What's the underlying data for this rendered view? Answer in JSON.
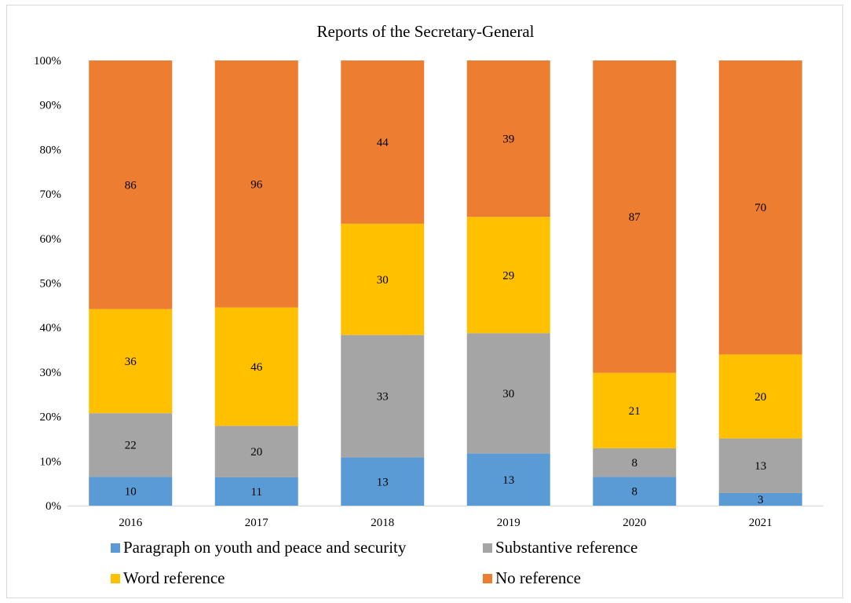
{
  "chart_data": {
    "type": "bar",
    "stacked": "percent",
    "title": "Reports of the Secretary-General",
    "xlabel": "",
    "ylabel": "",
    "categories": [
      "2016",
      "2017",
      "2018",
      "2019",
      "2020",
      "2021"
    ],
    "ylim": [
      0,
      100
    ],
    "yticks": [
      "0%",
      "10%",
      "20%",
      "30%",
      "40%",
      "50%",
      "60%",
      "70%",
      "80%",
      "90%",
      "100%"
    ],
    "grid": false,
    "legend_position": "bottom",
    "series": [
      {
        "name": "Paragraph on youth and peace and security",
        "color": "#5B9BD5",
        "values": [
          10,
          11,
          13,
          13,
          8,
          3
        ]
      },
      {
        "name": "Substantive reference",
        "color": "#A5A5A5",
        "values": [
          22,
          20,
          33,
          30,
          8,
          13
        ]
      },
      {
        "name": "Word reference",
        "color": "#FFC000",
        "values": [
          36,
          46,
          30,
          29,
          21,
          20
        ]
      },
      {
        "name": "No reference",
        "color": "#ED7D31",
        "values": [
          86,
          96,
          44,
          39,
          87,
          70
        ]
      }
    ]
  }
}
